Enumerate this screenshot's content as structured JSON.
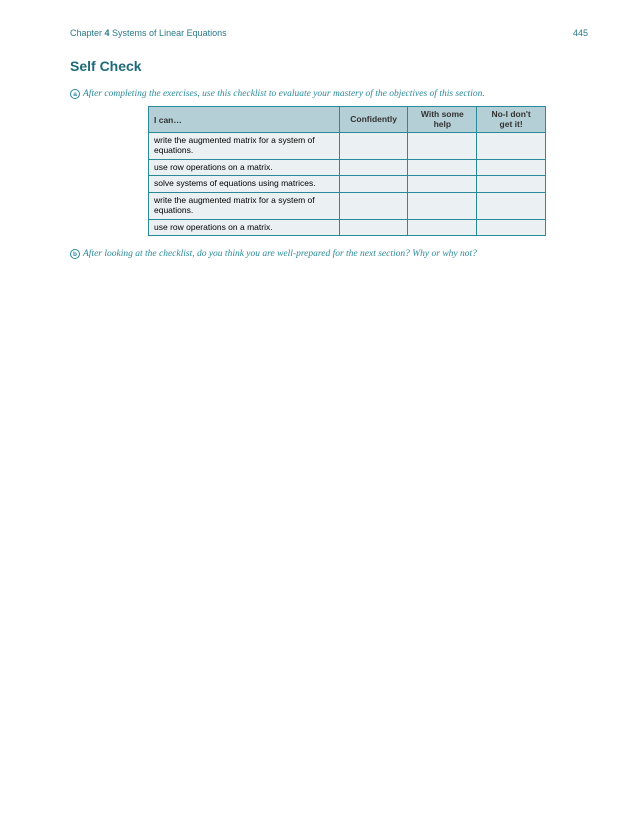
{
  "header": {
    "chapter_prefix": "Chapter ",
    "chapter_number": "4",
    "chapter_title": " Systems of Linear Equations",
    "page_number": "445"
  },
  "section_title": "Self Check",
  "prompt_a": {
    "letter": "a",
    "text": "After completing the exercises, use this checklist to evaluate your mastery of the objectives of this section."
  },
  "table": {
    "header": {
      "c0": "I can…",
      "c1": "Confidently",
      "c2_line1": "With some",
      "c2_line2": "help",
      "c3_line1": "No-I don't",
      "c3_line2": "get it!"
    },
    "rows": [
      {
        "skill": "write the augmented matrix for a system of equations."
      },
      {
        "skill": "use row operations on a matrix."
      },
      {
        "skill": "solve systems of equations using matrices."
      },
      {
        "skill": "write the augmented matrix for a system of equations."
      },
      {
        "skill": "use row operations on a matrix."
      }
    ]
  },
  "prompt_b": {
    "letter": "b",
    "text": "After looking at the checklist, do you think you are well-prepared for the next section? Why or why not?"
  },
  "colors": {
    "brand": "#2a8a9a",
    "title": "#1f6a7a",
    "th_bg": "#b4cfd5",
    "td_bg": "#ebf1f3"
  }
}
